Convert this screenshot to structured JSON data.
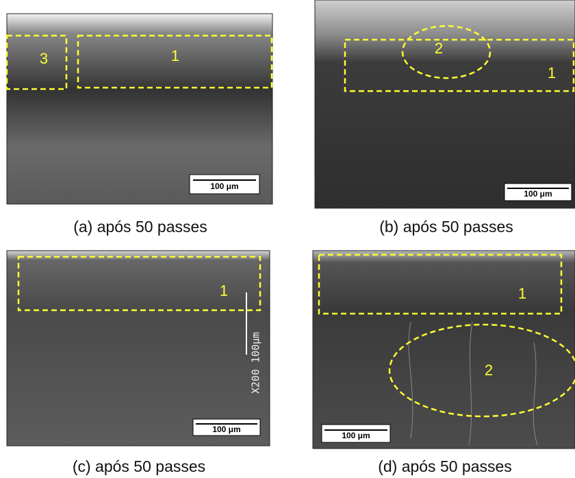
{
  "panels": [
    {
      "caption": "(a) após 50 passes",
      "labels": [
        "3",
        "1"
      ],
      "scale_bar": "100 μm"
    },
    {
      "caption": "(b) após 50 passes",
      "labels": [
        "2",
        "1"
      ],
      "scale_bar": "100 μm"
    },
    {
      "caption": "(c) após 50 passes",
      "labels": [
        "1"
      ],
      "scale_bar": "100 μm",
      "overlay_text": "X200 100µm"
    },
    {
      "caption": "(d) após 50 passes",
      "labels": [
        "1",
        "2"
      ],
      "scale_bar": "100 μm"
    }
  ]
}
